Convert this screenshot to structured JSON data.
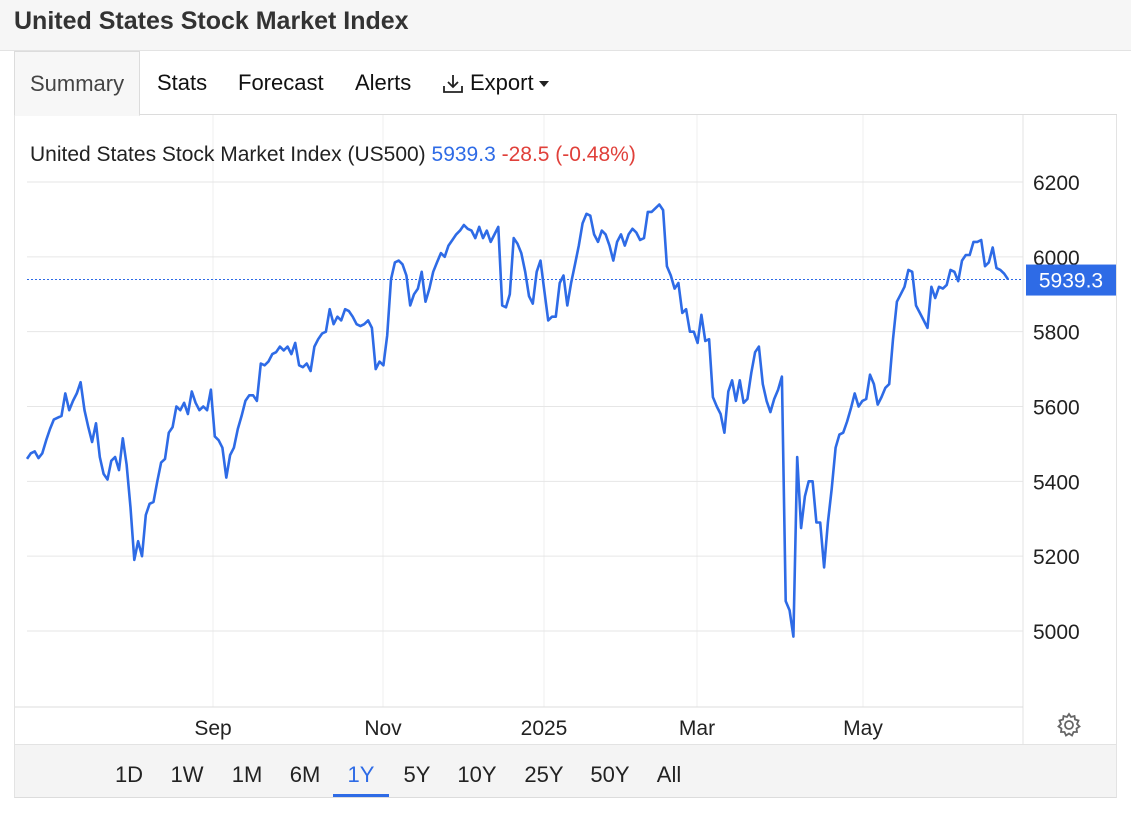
{
  "header": {
    "title": "United States Stock Market Index"
  },
  "tabs": [
    {
      "label": "Summary",
      "active": true
    },
    {
      "label": "Stats",
      "active": false
    },
    {
      "label": "Forecast",
      "active": false
    },
    {
      "label": "Alerts",
      "active": false
    },
    {
      "label": "Export",
      "active": false,
      "icon": "download-icon",
      "dropdown": true
    }
  ],
  "legend": {
    "name": "United States Stock Market Index (US500)",
    "last": "5939.3",
    "change": "-28.5 (-0.48%)",
    "last_color": "#2e6be6",
    "change_color": "#e0403a"
  },
  "price_tag": "5939.3",
  "ranges": [
    {
      "label": "1D",
      "active": false
    },
    {
      "label": "1W",
      "active": false
    },
    {
      "label": "1M",
      "active": false
    },
    {
      "label": "6M",
      "active": false
    },
    {
      "label": "1Y",
      "active": true
    },
    {
      "label": "5Y",
      "active": false
    },
    {
      "label": "10Y",
      "active": false
    },
    {
      "label": "25Y",
      "active": false
    },
    {
      "label": "50Y",
      "active": false
    },
    {
      "label": "All",
      "active": false
    }
  ],
  "settings_icon": "gear-icon",
  "chart_data": {
    "type": "line",
    "title": "",
    "xlabel": "",
    "ylabel": "",
    "ylim": [
      4800,
      6270
    ],
    "y_ticks": [
      5000,
      5200,
      5400,
      5600,
      5800,
      6000,
      6200
    ],
    "x_ticks": [
      "Sep",
      "Nov",
      "2025",
      "Mar",
      "May"
    ],
    "grid": true,
    "current_value": 5939.3,
    "line_color": "#2e6be6",
    "series": [
      {
        "values": [
          5460,
          5475,
          5480,
          5462,
          5475,
          5510,
          5540,
          5565,
          5570,
          5575,
          5635,
          5590,
          5615,
          5635,
          5665,
          5590,
          5545,
          5505,
          5555,
          5465,
          5420,
          5405,
          5455,
          5465,
          5430,
          5515,
          5445,
          5330,
          5190,
          5240,
          5200,
          5310,
          5340,
          5345,
          5400,
          5450,
          5460,
          5530,
          5545,
          5600,
          5590,
          5610,
          5580,
          5640,
          5610,
          5590,
          5600,
          5590,
          5645,
          5520,
          5510,
          5490,
          5410,
          5470,
          5490,
          5540,
          5575,
          5615,
          5630,
          5630,
          5615,
          5715,
          5710,
          5720,
          5740,
          5745,
          5760,
          5750,
          5760,
          5740,
          5770,
          5710,
          5705,
          5715,
          5695,
          5760,
          5780,
          5795,
          5800,
          5860,
          5820,
          5840,
          5830,
          5860,
          5855,
          5840,
          5820,
          5815,
          5820,
          5830,
          5810,
          5700,
          5720,
          5710,
          5790,
          5940,
          5985,
          5990,
          5980,
          5950,
          5870,
          5900,
          5915,
          5960,
          5880,
          5915,
          5960,
          5985,
          6010,
          6000,
          6030,
          6045,
          6060,
          6070,
          6085,
          6075,
          6070,
          6050,
          6080,
          6050,
          6070,
          6040,
          6060,
          6080,
          5870,
          5865,
          5900,
          6050,
          6035,
          6010,
          5960,
          5895,
          5875,
          5960,
          5990,
          5910,
          5830,
          5840,
          5840,
          5930,
          5950,
          5870,
          5930,
          5980,
          6030,
          6090,
          6115,
          6110,
          6060,
          6040,
          6070,
          6060,
          6030,
          5990,
          6040,
          6060,
          6030,
          6060,
          6075,
          6065,
          6045,
          6050,
          6120,
          6120,
          6130,
          6140,
          6125,
          5975,
          5950,
          5915,
          5930,
          5850,
          5860,
          5800,
          5800,
          5770,
          5845,
          5775,
          5780,
          5625,
          5600,
          5580,
          5530,
          5640,
          5670,
          5615,
          5670,
          5610,
          5620,
          5690,
          5745,
          5760,
          5660,
          5615,
          5585,
          5620,
          5645,
          5680,
          5080,
          5055,
          4985,
          5465,
          5275,
          5360,
          5400,
          5400,
          5290,
          5290,
          5170,
          5290,
          5380,
          5490,
          5525,
          5530,
          5560,
          5595,
          5635,
          5600,
          5615,
          5620,
          5685,
          5660,
          5605,
          5625,
          5650,
          5660,
          5780,
          5880,
          5900,
          5920,
          5965,
          5960,
          5870,
          5850,
          5830,
          5810,
          5920,
          5890,
          5920,
          5915,
          5925,
          5965,
          5960,
          5935,
          5990,
          6005,
          6005,
          6040,
          6040,
          6045,
          5975,
          5985,
          6025,
          5970,
          5965,
          5955,
          5940
        ]
      }
    ]
  }
}
